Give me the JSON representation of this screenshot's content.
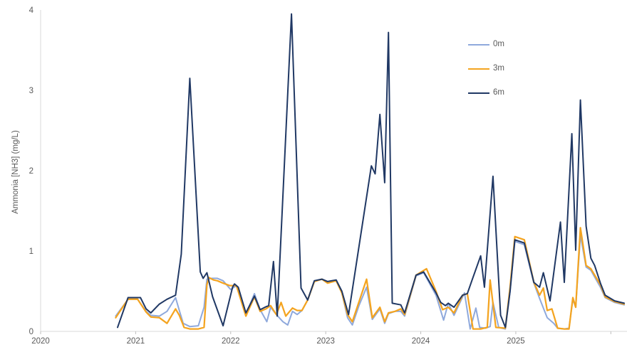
{
  "colors": {
    "background": "#ffffff",
    "axis_line": "#d9d9d9",
    "tick_mark": "#bfbfbf",
    "label_text": "#595959",
    "series_0m": "#8fa9dc",
    "series_3m": "#f4a420",
    "series_6m": "#203864"
  },
  "legend": {
    "items": [
      {
        "label": "0m",
        "color": "#8fa9dc"
      },
      {
        "label": "3m",
        "color": "#f4a420"
      },
      {
        "label": "6m",
        "color": "#203864"
      }
    ]
  },
  "chart_data": {
    "type": "line",
    "title": "",
    "xlabel": "",
    "ylabel": "Ammonia [NH3] (mg/L)",
    "xlim": [
      2020,
      2026.17
    ],
    "ylim": [
      0,
      4
    ],
    "x_ticks": [
      2020,
      2021,
      2022,
      2023,
      2024,
      2025,
      2026
    ],
    "x_tick_labels": [
      "2020",
      "2021",
      "2022",
      "2023",
      "2024",
      "2025",
      ""
    ],
    "y_ticks": [
      0,
      1,
      2,
      3,
      4
    ],
    "grid": false,
    "legend_position": "upper-right-inside",
    "series": [
      {
        "name": "0m",
        "color": "#8fa9dc",
        "stroke_width": 2,
        "points": [
          [
            2020.79,
            0.19
          ],
          [
            2020.92,
            0.4
          ],
          [
            2021.02,
            0.4
          ],
          [
            2021.11,
            0.25
          ],
          [
            2021.16,
            0.2
          ],
          [
            2021.25,
            0.19
          ],
          [
            2021.33,
            0.25
          ],
          [
            2021.42,
            0.42
          ],
          [
            2021.46,
            0.26
          ],
          [
            2021.5,
            0.1
          ],
          [
            2021.57,
            0.06
          ],
          [
            2021.66,
            0.07
          ],
          [
            2021.72,
            0.3
          ],
          [
            2021.75,
            0.65
          ],
          [
            2021.8,
            0.66
          ],
          [
            2021.86,
            0.66
          ],
          [
            2021.92,
            0.63
          ],
          [
            2022.0,
            0.52
          ],
          [
            2022.06,
            0.57
          ],
          [
            2022.16,
            0.21
          ],
          [
            2022.25,
            0.47
          ],
          [
            2022.31,
            0.27
          ],
          [
            2022.38,
            0.12
          ],
          [
            2022.42,
            0.3
          ],
          [
            2022.48,
            0.21
          ],
          [
            2022.55,
            0.12
          ],
          [
            2022.6,
            0.08
          ],
          [
            2022.65,
            0.25
          ],
          [
            2022.7,
            0.21
          ],
          [
            2022.75,
            0.26
          ],
          [
            2022.81,
            0.39
          ],
          [
            2022.88,
            0.63
          ],
          [
            2022.96,
            0.65
          ],
          [
            2023.02,
            0.62
          ],
          [
            2023.11,
            0.64
          ],
          [
            2023.17,
            0.48
          ],
          [
            2023.23,
            0.17
          ],
          [
            2023.28,
            0.08
          ],
          [
            2023.35,
            0.32
          ],
          [
            2023.43,
            0.55
          ],
          [
            2023.49,
            0.15
          ],
          [
            2023.57,
            0.28
          ],
          [
            2023.62,
            0.1
          ],
          [
            2023.66,
            0.22
          ],
          [
            2023.73,
            0.25
          ],
          [
            2023.79,
            0.25
          ],
          [
            2023.83,
            0.19
          ],
          [
            2023.95,
            0.69
          ],
          [
            2024.03,
            0.73
          ],
          [
            2024.16,
            0.45
          ],
          [
            2024.24,
            0.14
          ],
          [
            2024.29,
            0.35
          ],
          [
            2024.35,
            0.2
          ],
          [
            2024.46,
            0.48
          ],
          [
            2024.52,
            0.03
          ],
          [
            2024.58,
            0.29
          ],
          [
            2024.62,
            0.05
          ],
          [
            2024.68,
            0.04
          ],
          [
            2024.73,
            0.06
          ],
          [
            2024.76,
            0.36
          ],
          [
            2024.82,
            0.05
          ],
          [
            2024.89,
            0.03
          ],
          [
            2024.94,
            0.5
          ],
          [
            2024.99,
            1.12
          ],
          [
            2025.09,
            1.08
          ],
          [
            2025.19,
            0.6
          ],
          [
            2025.25,
            0.41
          ],
          [
            2025.33,
            0.17
          ],
          [
            2025.4,
            0.1
          ],
          [
            2025.44,
            0.04
          ],
          [
            2025.51,
            0.03
          ],
          [
            2025.56,
            0.04
          ],
          [
            2025.6,
            0.4
          ],
          [
            2025.63,
            0.3
          ],
          [
            2025.68,
            1.2
          ],
          [
            2025.74,
            0.8
          ],
          [
            2025.79,
            0.76
          ],
          [
            2025.89,
            0.55
          ],
          [
            2025.94,
            0.42
          ],
          [
            2026.04,
            0.36
          ],
          [
            2026.14,
            0.33
          ]
        ]
      },
      {
        "name": "3m",
        "color": "#f4a420",
        "stroke_width": 2.25,
        "points": [
          [
            2020.79,
            0.17
          ],
          [
            2020.92,
            0.4
          ],
          [
            2021.02,
            0.4
          ],
          [
            2021.11,
            0.24
          ],
          [
            2021.16,
            0.18
          ],
          [
            2021.25,
            0.17
          ],
          [
            2021.33,
            0.1
          ],
          [
            2021.42,
            0.28
          ],
          [
            2021.46,
            0.2
          ],
          [
            2021.51,
            0.05
          ],
          [
            2021.57,
            0.03
          ],
          [
            2021.66,
            0.03
          ],
          [
            2021.72,
            0.05
          ],
          [
            2021.75,
            0.58
          ],
          [
            2021.77,
            0.67
          ],
          [
            2021.82,
            0.64
          ],
          [
            2021.86,
            0.63
          ],
          [
            2021.92,
            0.6
          ],
          [
            2021.99,
            0.57
          ],
          [
            2022.06,
            0.57
          ],
          [
            2022.16,
            0.19
          ],
          [
            2022.25,
            0.43
          ],
          [
            2022.31,
            0.25
          ],
          [
            2022.37,
            0.28
          ],
          [
            2022.42,
            0.32
          ],
          [
            2022.48,
            0.21
          ],
          [
            2022.53,
            0.36
          ],
          [
            2022.58,
            0.19
          ],
          [
            2022.65,
            0.29
          ],
          [
            2022.7,
            0.26
          ],
          [
            2022.75,
            0.26
          ],
          [
            2022.81,
            0.39
          ],
          [
            2022.88,
            0.62
          ],
          [
            2022.96,
            0.65
          ],
          [
            2023.02,
            0.6
          ],
          [
            2023.11,
            0.63
          ],
          [
            2023.17,
            0.48
          ],
          [
            2023.23,
            0.21
          ],
          [
            2023.28,
            0.12
          ],
          [
            2023.43,
            0.65
          ],
          [
            2023.49,
            0.17
          ],
          [
            2023.57,
            0.3
          ],
          [
            2023.62,
            0.12
          ],
          [
            2023.66,
            0.23
          ],
          [
            2023.73,
            0.25
          ],
          [
            2023.79,
            0.28
          ],
          [
            2023.83,
            0.21
          ],
          [
            2023.95,
            0.7
          ],
          [
            2024.06,
            0.78
          ],
          [
            2024.16,
            0.5
          ],
          [
            2024.23,
            0.27
          ],
          [
            2024.29,
            0.3
          ],
          [
            2024.35,
            0.23
          ],
          [
            2024.44,
            0.45
          ],
          [
            2024.49,
            0.47
          ],
          [
            2024.55,
            0.03
          ],
          [
            2024.63,
            0.03
          ],
          [
            2024.7,
            0.05
          ],
          [
            2024.73,
            0.64
          ],
          [
            2024.79,
            0.05
          ],
          [
            2024.89,
            0.04
          ],
          [
            2024.94,
            0.55
          ],
          [
            2024.99,
            1.18
          ],
          [
            2025.09,
            1.14
          ],
          [
            2025.19,
            0.61
          ],
          [
            2025.25,
            0.45
          ],
          [
            2025.29,
            0.54
          ],
          [
            2025.33,
            0.26
          ],
          [
            2025.38,
            0.28
          ],
          [
            2025.44,
            0.04
          ],
          [
            2025.51,
            0.03
          ],
          [
            2025.56,
            0.03
          ],
          [
            2025.6,
            0.42
          ],
          [
            2025.63,
            0.3
          ],
          [
            2025.68,
            1.29
          ],
          [
            2025.74,
            0.82
          ],
          [
            2025.79,
            0.78
          ],
          [
            2025.89,
            0.58
          ],
          [
            2025.94,
            0.43
          ],
          [
            2026.04,
            0.37
          ],
          [
            2026.14,
            0.34
          ]
        ]
      },
      {
        "name": "6m",
        "color": "#203864",
        "stroke_width": 2,
        "points": [
          [
            2020.81,
            0.05
          ],
          [
            2020.92,
            0.42
          ],
          [
            2021.05,
            0.42
          ],
          [
            2021.11,
            0.28
          ],
          [
            2021.16,
            0.23
          ],
          [
            2021.25,
            0.34
          ],
          [
            2021.33,
            0.4
          ],
          [
            2021.42,
            0.45
          ],
          [
            2021.48,
            0.96
          ],
          [
            2021.57,
            3.15
          ],
          [
            2021.68,
            0.74
          ],
          [
            2021.71,
            0.66
          ],
          [
            2021.75,
            0.73
          ],
          [
            2021.81,
            0.43
          ],
          [
            2021.92,
            0.07
          ],
          [
            2022.02,
            0.55
          ],
          [
            2022.04,
            0.59
          ],
          [
            2022.08,
            0.55
          ],
          [
            2022.16,
            0.23
          ],
          [
            2022.25,
            0.44
          ],
          [
            2022.31,
            0.27
          ],
          [
            2022.36,
            0.3
          ],
          [
            2022.4,
            0.32
          ],
          [
            2022.45,
            0.87
          ],
          [
            2022.49,
            0.19
          ],
          [
            2022.64,
            3.95
          ],
          [
            2022.74,
            0.54
          ],
          [
            2022.81,
            0.39
          ],
          [
            2022.88,
            0.63
          ],
          [
            2022.96,
            0.65
          ],
          [
            2023.02,
            0.62
          ],
          [
            2023.11,
            0.64
          ],
          [
            2023.17,
            0.5
          ],
          [
            2023.24,
            0.21
          ],
          [
            2023.48,
            2.06
          ],
          [
            2023.52,
            1.96
          ],
          [
            2023.57,
            2.7
          ],
          [
            2023.62,
            1.85
          ],
          [
            2023.66,
            3.72
          ],
          [
            2023.7,
            0.35
          ],
          [
            2023.79,
            0.33
          ],
          [
            2023.83,
            0.23
          ],
          [
            2023.95,
            0.7
          ],
          [
            2024.03,
            0.74
          ],
          [
            2024.16,
            0.48
          ],
          [
            2024.21,
            0.36
          ],
          [
            2024.26,
            0.32
          ],
          [
            2024.29,
            0.35
          ],
          [
            2024.35,
            0.3
          ],
          [
            2024.44,
            0.45
          ],
          [
            2024.49,
            0.47
          ],
          [
            2024.54,
            0.64
          ],
          [
            2024.63,
            0.94
          ],
          [
            2024.67,
            0.55
          ],
          [
            2024.76,
            1.93
          ],
          [
            2024.84,
            0.2
          ],
          [
            2024.89,
            0.05
          ],
          [
            2024.94,
            0.5
          ],
          [
            2024.99,
            1.14
          ],
          [
            2025.09,
            1.1
          ],
          [
            2025.19,
            0.61
          ],
          [
            2025.25,
            0.55
          ],
          [
            2025.29,
            0.73
          ],
          [
            2025.36,
            0.38
          ],
          [
            2025.47,
            1.36
          ],
          [
            2025.51,
            0.61
          ],
          [
            2025.59,
            2.46
          ],
          [
            2025.63,
            1.01
          ],
          [
            2025.68,
            2.88
          ],
          [
            2025.74,
            1.31
          ],
          [
            2025.79,
            0.91
          ],
          [
            2025.83,
            0.82
          ],
          [
            2025.89,
            0.6
          ],
          [
            2025.94,
            0.45
          ],
          [
            2026.04,
            0.38
          ],
          [
            2026.14,
            0.35
          ]
        ]
      }
    ]
  }
}
